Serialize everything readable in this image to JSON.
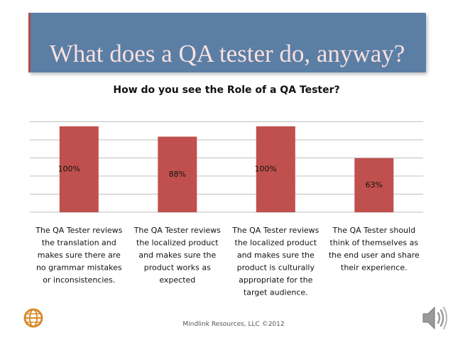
{
  "slide": {
    "title": "What does a QA tester do, anyway?",
    "footer": "Mindlink Resources, LLC ©2012"
  },
  "icons": {
    "logo": "globe-logo-icon",
    "audio": "speaker-icon"
  },
  "colors": {
    "title_bar": "#5b7ea5",
    "title_text": "#f7e0df",
    "bar": "#c0504d",
    "grid": "#bfbfbf"
  },
  "chart_data": {
    "type": "bar",
    "title": "How do you see the Role of a QA Tester?",
    "categories": [
      [
        "The QA Tester reviews",
        "the translation and",
        "makes sure there are",
        "no grammar mistakes",
        "or inconsistencies."
      ],
      [
        "The QA Tester reviews",
        "the localized product",
        "and makes sure the",
        "product works as",
        "expected"
      ],
      [
        "The QA Tester reviews",
        "the localized product",
        "and makes sure the",
        "product is culturally",
        "appropriate for the",
        "target audience."
      ],
      [
        "The QA Tester should",
        "think of themselves as",
        "the end user and share",
        "their experience."
      ]
    ],
    "values": [
      100,
      88,
      100,
      63
    ],
    "data_labels": [
      "100%",
      "88%",
      "100%",
      "63%"
    ],
    "ylim": [
      0,
      100
    ],
    "grid": true,
    "legend": "none"
  }
}
